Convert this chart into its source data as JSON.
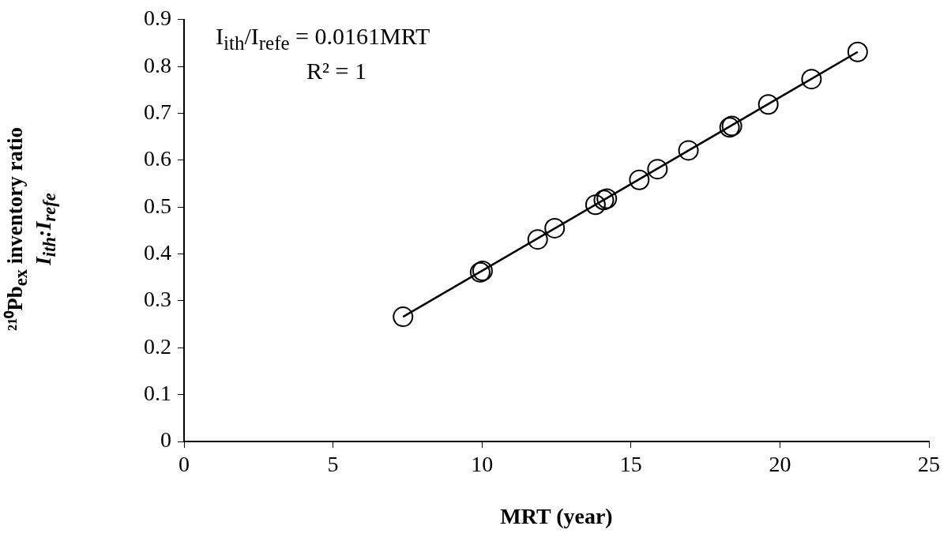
{
  "chart_data": {
    "type": "scatter",
    "xlabel": "MRT (year)",
    "ylabel": "²¹⁰Pb$_{ex}$ inventory ratio\nI$_{ith}$:I$_{refe}$",
    "annotations": [
      "I$_{ith}$/I$_{refe}$ = 0.0161MRT",
      "R² = 1"
    ],
    "xlim": [
      0,
      25
    ],
    "xticks": [
      0,
      5,
      10,
      15,
      20,
      25
    ],
    "ylim": [
      0,
      0.9
    ],
    "yticks": [
      0,
      0.1,
      0.2,
      0.3,
      0.4,
      0.5,
      0.6,
      0.7,
      0.8,
      0.9
    ],
    "grid": false,
    "legend": false,
    "marker": "circle",
    "series": [
      {
        "color": "#000000",
        "x": [
          7.35,
          9.94,
          10.02,
          11.87,
          12.44,
          13.81,
          14.09,
          14.19,
          15.28,
          15.89,
          16.93,
          18.31,
          18.39,
          19.61,
          21.06,
          22.61
        ],
        "values": [
          0.266,
          0.361,
          0.364,
          0.431,
          0.455,
          0.505,
          0.515,
          0.518,
          0.558,
          0.581,
          0.621,
          0.67,
          0.673,
          0.719,
          0.773,
          0.831
        ]
      },
      {
        "type": "line",
        "marker": "none",
        "color": "#000000",
        "x": [
          7.35,
          22.61
        ],
        "values": [
          0.266,
          0.831
        ]
      }
    ]
  }
}
